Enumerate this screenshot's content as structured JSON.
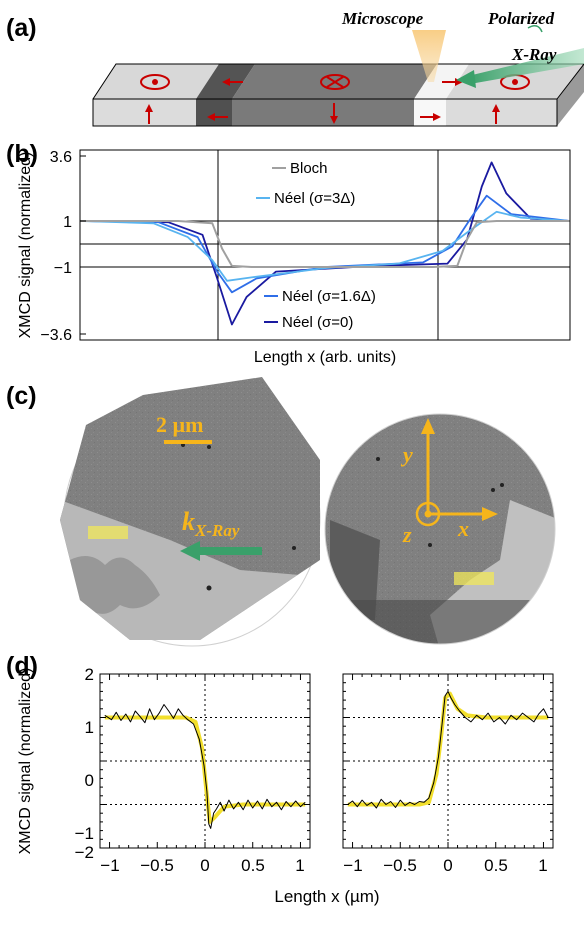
{
  "panels": {
    "a": {
      "label": "(a)",
      "microscope": "Microscope",
      "polarized": "Polarized",
      "xray": "X-Ray"
    },
    "b": {
      "label": "(b)"
    },
    "c": {
      "label": "(c)",
      "scale": "2 µm",
      "k_main": "k",
      "k_sub": "X-Ray",
      "axis_x": "x",
      "axis_y": "y",
      "axis_z": "z"
    },
    "d": {
      "label": "(d)"
    }
  },
  "colors": {
    "accent_yellow": "#f6b51b",
    "xray_green": "#3aa06a",
    "arrow_red": "#c80000",
    "dark_blue": "#1a1aa0",
    "mid_blue": "#2f6ee8",
    "light_blue": "#58b4f0",
    "bloch_gray": "#a0a0a0",
    "fit_yellow": "#f2df2c"
  },
  "chart_data": [
    {
      "type": "line",
      "panel": "b",
      "xlabel": "Length x (arb. units)",
      "ylabel": "XMCD signal (normalized)",
      "ylim": [
        -4.0,
        4.0
      ],
      "yticks": [
        {
          "label": "3.6",
          "value": 3.6
        },
        {
          "label": "1",
          "value": 1
        },
        {
          "label": "−1",
          "value": -1
        },
        {
          "label": "−3.6",
          "value": -3.6
        }
      ],
      "series": [
        {
          "name": "Bloch",
          "color": "#a0a0a0",
          "values": [
            [
              0,
              1
            ],
            [
              0.2,
              1
            ],
            [
              0.27,
              0.9
            ],
            [
              0.29,
              -0.2
            ],
            [
              0.31,
              -0.95
            ],
            [
              0.35,
              -1
            ],
            [
              0.72,
              -1
            ],
            [
              0.77,
              -0.95
            ],
            [
              0.79,
              0.2
            ],
            [
              0.81,
              0.95
            ],
            [
              0.85,
              1
            ],
            [
              1,
              1
            ]
          ]
        },
        {
          "name": "Néel (σ=3Δ)",
          "color": "#58b4f0",
          "values": [
            [
              0,
              1
            ],
            [
              0.15,
              0.9
            ],
            [
              0.22,
              0.3
            ],
            [
              0.27,
              -0.7
            ],
            [
              0.3,
              -1.6
            ],
            [
              0.35,
              -1.45
            ],
            [
              0.5,
              -1.05
            ],
            [
              0.65,
              -0.85
            ],
            [
              0.74,
              -0.3
            ],
            [
              0.79,
              0.5
            ],
            [
              0.85,
              1.4
            ],
            [
              0.9,
              1.15
            ],
            [
              1,
              1
            ]
          ]
        },
        {
          "name": "Néel (σ=1.6Δ)",
          "color": "#2f6ee8",
          "values": [
            [
              0,
              1
            ],
            [
              0.16,
              0.95
            ],
            [
              0.24,
              0.3
            ],
            [
              0.28,
              -1.2
            ],
            [
              0.31,
              -2.1
            ],
            [
              0.36,
              -1.5
            ],
            [
              0.5,
              -1.0
            ],
            [
              0.7,
              -0.8
            ],
            [
              0.76,
              -0.1
            ],
            [
              0.8,
              1.2
            ],
            [
              0.83,
              2.1
            ],
            [
              0.88,
              1.3
            ],
            [
              1,
              1
            ]
          ]
        },
        {
          "name": "Néel (σ=0)",
          "color": "#1a1aa0",
          "values": [
            [
              0,
              1
            ],
            [
              0.18,
              0.95
            ],
            [
              0.25,
              0.4
            ],
            [
              0.28,
              -1.5
            ],
            [
              0.31,
              -3.5
            ],
            [
              0.34,
              -2.3
            ],
            [
              0.4,
              -1.2
            ],
            [
              0.6,
              -0.95
            ],
            [
              0.75,
              -0.85
            ],
            [
              0.79,
              0.2
            ],
            [
              0.82,
              2.5
            ],
            [
              0.84,
              3.55
            ],
            [
              0.87,
              2.2
            ],
            [
              0.92,
              1.1
            ],
            [
              1,
              1
            ]
          ]
        }
      ]
    },
    {
      "type": "line",
      "panel": "d",
      "xlabel": "Length x (µm)",
      "ylabel": "XMCD signal (normalized)",
      "xlim": [
        -1.1,
        1.1
      ],
      "ylim": [
        -2,
        2
      ],
      "xticks": [
        {
          "label": "−1",
          "value": -1
        },
        {
          "label": "−0.5",
          "value": -0.5
        },
        {
          "label": "0",
          "value": 0
        },
        {
          "label": "0.5",
          "value": 0.5
        },
        {
          "label": "1",
          "value": 1
        }
      ],
      "yticks": [
        {
          "label": "2",
          "value": 2
        },
        {
          "label": "1",
          "value": 1
        },
        {
          "label": "0",
          "value": 0
        },
        {
          "label": "−1",
          "value": -1
        },
        {
          "label": "−2",
          "value": -2
        }
      ],
      "subplots": [
        {
          "fit": [
            [
              -1.05,
              1.0
            ],
            [
              -0.2,
              1.0
            ],
            [
              -0.1,
              0.9
            ],
            [
              -0.03,
              0.3
            ],
            [
              0.02,
              -0.8
            ],
            [
              0.05,
              -1.4
            ],
            [
              0.1,
              -1.3
            ],
            [
              0.2,
              -1.05
            ],
            [
              0.4,
              -1.0
            ],
            [
              1.05,
              -1.0
            ]
          ],
          "measured": [
            [
              -1.05,
              1.05
            ],
            [
              -0.98,
              0.95
            ],
            [
              -0.93,
              1.12
            ],
            [
              -0.88,
              0.93
            ],
            [
              -0.83,
              1.08
            ],
            [
              -0.78,
              0.9
            ],
            [
              -0.73,
              1.15
            ],
            [
              -0.68,
              1.02
            ],
            [
              -0.63,
              0.88
            ],
            [
              -0.58,
              1.2
            ],
            [
              -0.53,
              0.95
            ],
            [
              -0.48,
              1.1
            ],
            [
              -0.43,
              1.3
            ],
            [
              -0.38,
              1.15
            ],
            [
              -0.33,
              0.98
            ],
            [
              -0.28,
              1.2
            ],
            [
              -0.23,
              1.05
            ],
            [
              -0.18,
              0.95
            ],
            [
              -0.12,
              0.85
            ],
            [
              -0.06,
              0.5
            ],
            [
              -0.01,
              -0.1
            ],
            [
              0.02,
              -0.7
            ],
            [
              0.04,
              -1.45
            ],
            [
              0.06,
              -1.55
            ],
            [
              0.09,
              -1.2
            ],
            [
              0.12,
              -1.1
            ],
            [
              0.16,
              -0.95
            ],
            [
              0.2,
              -1.15
            ],
            [
              0.25,
              -0.9
            ],
            [
              0.3,
              -1.1
            ],
            [
              0.35,
              -0.95
            ],
            [
              0.4,
              -1.12
            ],
            [
              0.45,
              -0.9
            ],
            [
              0.5,
              -1.08
            ],
            [
              0.55,
              -0.92
            ],
            [
              0.6,
              -1.1
            ],
            [
              0.65,
              -0.88
            ],
            [
              0.7,
              -1.05
            ],
            [
              0.75,
              -0.95
            ],
            [
              0.8,
              -1.12
            ],
            [
              0.85,
              -0.93
            ],
            [
              0.9,
              -1.05
            ],
            [
              0.95,
              -0.92
            ],
            [
              1.0,
              -1.05
            ],
            [
              1.05,
              -0.95
            ]
          ]
        },
        {
          "fit": [
            [
              -1.05,
              -1.0
            ],
            [
              -0.3,
              -1.0
            ],
            [
              -0.2,
              -0.95
            ],
            [
              -0.12,
              -0.3
            ],
            [
              -0.07,
              0.6
            ],
            [
              -0.03,
              1.45
            ],
            [
              0.02,
              1.55
            ],
            [
              0.1,
              1.2
            ],
            [
              0.2,
              1.05
            ],
            [
              0.4,
              1.0
            ],
            [
              1.05,
              1.0
            ]
          ],
          "measured": [
            [
              -1.05,
              -1.0
            ],
            [
              -1.0,
              -0.92
            ],
            [
              -0.95,
              -1.05
            ],
            [
              -0.9,
              -0.9
            ],
            [
              -0.85,
              -1.02
            ],
            [
              -0.8,
              -0.95
            ],
            [
              -0.75,
              -1.08
            ],
            [
              -0.7,
              -0.88
            ],
            [
              -0.65,
              -1.0
            ],
            [
              -0.6,
              -0.93
            ],
            [
              -0.55,
              -1.07
            ],
            [
              -0.5,
              -0.9
            ],
            [
              -0.45,
              -1.02
            ],
            [
              -0.4,
              -0.95
            ],
            [
              -0.35,
              -1.0
            ],
            [
              -0.3,
              -0.93
            ],
            [
              -0.25,
              -0.95
            ],
            [
              -0.2,
              -0.85
            ],
            [
              -0.15,
              -0.5
            ],
            [
              -0.1,
              0.1
            ],
            [
              -0.06,
              0.9
            ],
            [
              -0.03,
              1.5
            ],
            [
              0.0,
              1.6
            ],
            [
              0.03,
              1.45
            ],
            [
              0.07,
              1.3
            ],
            [
              0.12,
              1.15
            ],
            [
              0.18,
              1.0
            ],
            [
              0.24,
              0.9
            ],
            [
              0.3,
              1.05
            ],
            [
              0.36,
              0.95
            ],
            [
              0.42,
              1.1
            ],
            [
              0.48,
              0.9
            ],
            [
              0.54,
              1.0
            ],
            [
              0.6,
              0.85
            ],
            [
              0.66,
              1.05
            ],
            [
              0.72,
              0.95
            ],
            [
              0.78,
              1.1
            ],
            [
              0.84,
              1.0
            ],
            [
              0.9,
              0.9
            ],
            [
              0.95,
              1.08
            ],
            [
              1.0,
              1.2
            ],
            [
              1.05,
              1.0
            ]
          ]
        }
      ]
    }
  ]
}
